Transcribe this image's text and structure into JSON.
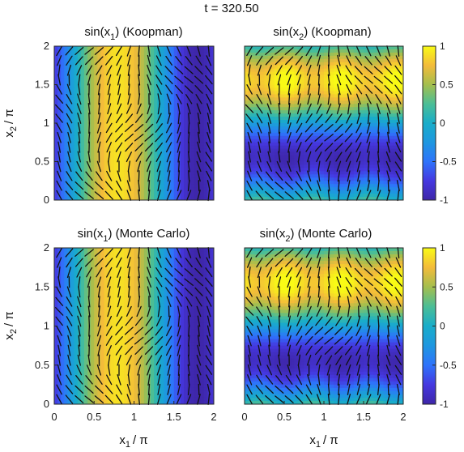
{
  "figure": {
    "title": "t = 320.50"
  },
  "chart_data": [
    {
      "type": "heatmap",
      "title_main": "sin(x",
      "title_sub": "1",
      "title_tail": ") (Koopman)",
      "field": "sin1",
      "xlabel": "",
      "ylabel_main": "x",
      "ylabel_sub": "2",
      "ylabel_tail": "/ π",
      "xlim": [
        0,
        2
      ],
      "ylim": [
        0,
        2
      ],
      "xticks": [],
      "yticks": [
        "0",
        "0.5",
        "1",
        "1.5",
        "2"
      ],
      "clim": [
        -1,
        1
      ],
      "colormap": "parula"
    },
    {
      "type": "heatmap",
      "title_main": "sin(x",
      "title_sub": "2",
      "title_tail": ") (Koopman)",
      "field": "sin2",
      "xlabel": "",
      "ylabel_main": "",
      "xlim": [
        0,
        2
      ],
      "ylim": [
        0,
        2
      ],
      "xticks": [],
      "yticks": [],
      "clim": [
        -1,
        1
      ],
      "colormap": "parula",
      "colorbar_ticks": [
        "1",
        "0.5",
        "0",
        "-0.5",
        "-1"
      ]
    },
    {
      "type": "heatmap",
      "title_main": "sin(x",
      "title_sub": "1",
      "title_tail": ") (Monte Carlo)",
      "field": "sin1",
      "xlabel_main": "x",
      "xlabel_sub": "1",
      "xlabel_tail": "/ π",
      "ylabel_main": "x",
      "ylabel_sub": "2",
      "ylabel_tail": "/ π",
      "xlim": [
        0,
        2
      ],
      "ylim": [
        0,
        2
      ],
      "xticks": [
        "0",
        "0.5",
        "1",
        "1.5",
        "2"
      ],
      "yticks": [
        "0",
        "0.5",
        "1",
        "1.5",
        "2"
      ],
      "clim": [
        -1,
        1
      ],
      "colormap": "parula"
    },
    {
      "type": "heatmap",
      "title_main": "sin(x",
      "title_sub": "2",
      "title_tail": ") (Monte Carlo)",
      "field": "sin2",
      "xlabel_main": "x",
      "xlabel_sub": "1",
      "xlabel_tail": "/ π",
      "ylabel_main": "",
      "xlim": [
        0,
        2
      ],
      "ylim": [
        0,
        2
      ],
      "xticks": [
        "0",
        "0.5",
        "1",
        "1.5",
        "2"
      ],
      "yticks": [],
      "clim": [
        -1,
        1
      ],
      "colormap": "parula",
      "colorbar_ticks": [
        "1",
        "0.5",
        "0",
        "-0.5",
        "-1"
      ]
    }
  ]
}
